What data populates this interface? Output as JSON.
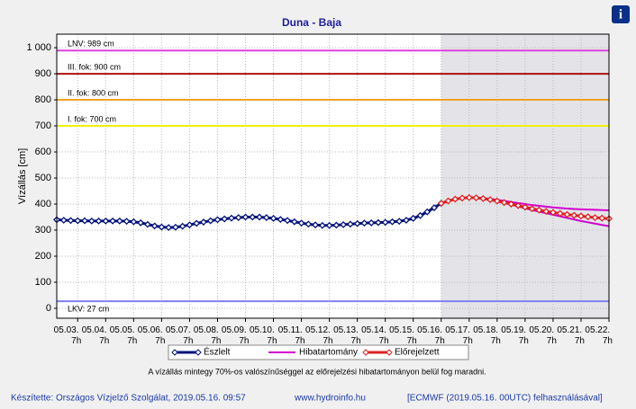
{
  "chart_data": {
    "type": "line",
    "title": "Duna - Baja",
    "ylabel": "Vízállás [cm]",
    "categories": [
      null,
      null,
      null,
      "05.03. 7h",
      null,
      null,
      null,
      "05.04. 7h",
      null,
      null,
      null,
      "05.05. 7h",
      null,
      null,
      null,
      "05.06. 7h",
      null,
      null,
      null,
      "05.07. 7h",
      null,
      null,
      null,
      "05.08. 7h",
      null,
      null,
      null,
      "05.09. 7h",
      null,
      null,
      null,
      "05.10. 7h",
      null,
      null,
      null,
      "05.11. 7h",
      null,
      null,
      null,
      "05.12. 7h",
      null,
      null,
      null,
      "05.13. 7h",
      null,
      null,
      null,
      "05.14. 7h",
      null,
      null,
      null,
      "05.15. 7h",
      null,
      null,
      null,
      "05.16. 7h",
      null,
      null,
      null,
      "05.17. 7h",
      null,
      null,
      null,
      "05.18. 7h",
      null,
      null,
      null,
      "05.19. 7h",
      null,
      null,
      null,
      "05.20. 7h",
      null,
      null,
      null,
      "05.21. 7h",
      null,
      null,
      null,
      "05.22. 7h"
    ],
    "series": [
      {
        "name": "Észlelt",
        "color": "#00107a",
        "values": [
          340,
          338,
          337,
          336,
          336,
          335,
          335,
          335,
          335,
          335,
          334,
          332,
          328,
          322,
          316,
          312,
          310,
          311,
          315,
          320,
          326,
          331,
          336,
          340,
          343,
          346,
          348,
          350,
          350,
          350,
          348,
          345,
          341,
          337,
          332,
          327,
          323,
          320,
          318,
          318,
          319,
          321,
          323,
          325,
          327,
          328,
          329,
          330,
          332,
          334,
          338,
          345,
          356,
          370,
          386,
          403,
          null,
          null,
          null,
          null,
          null,
          null,
          null,
          null,
          null,
          null,
          null,
          null,
          null,
          null,
          null,
          null,
          null,
          null,
          null,
          null,
          null,
          null,
          null,
          null
        ]
      },
      {
        "name": "Hibatartomány",
        "color": "#d000d0",
        "upper": [
          null,
          null,
          null,
          null,
          null,
          null,
          null,
          null,
          null,
          null,
          null,
          null,
          null,
          null,
          null,
          null,
          null,
          null,
          null,
          null,
          null,
          null,
          null,
          null,
          null,
          null,
          null,
          null,
          null,
          null,
          null,
          null,
          null,
          null,
          null,
          null,
          null,
          null,
          null,
          null,
          null,
          null,
          null,
          null,
          null,
          null,
          null,
          null,
          null,
          null,
          null,
          null,
          null,
          null,
          null,
          403,
          412,
          419,
          423,
          425,
          425,
          423,
          420,
          416,
          412,
          408,
          404,
          400,
          396,
          393,
          390,
          387,
          385,
          383,
          381,
          380,
          379,
          378,
          377,
          376
        ],
        "lower": [
          null,
          null,
          null,
          null,
          null,
          null,
          null,
          null,
          null,
          null,
          null,
          null,
          null,
          null,
          null,
          null,
          null,
          null,
          null,
          null,
          null,
          null,
          null,
          null,
          null,
          null,
          null,
          null,
          null,
          null,
          null,
          null,
          null,
          null,
          null,
          null,
          null,
          null,
          null,
          null,
          null,
          null,
          null,
          null,
          null,
          null,
          null,
          null,
          null,
          null,
          null,
          null,
          null,
          null,
          null,
          403,
          412,
          419,
          423,
          425,
          423,
          420,
          415,
          410,
          404,
          398,
          391,
          384,
          377,
          371,
          365,
          359,
          353,
          347,
          341,
          335,
          330,
          325,
          320,
          315
        ]
      },
      {
        "name": "Előrejelzett",
        "color": "#e02020",
        "values": [
          null,
          null,
          null,
          null,
          null,
          null,
          null,
          null,
          null,
          null,
          null,
          null,
          null,
          null,
          null,
          null,
          null,
          null,
          null,
          null,
          null,
          null,
          null,
          null,
          null,
          null,
          null,
          null,
          null,
          null,
          null,
          null,
          null,
          null,
          null,
          null,
          null,
          null,
          null,
          null,
          null,
          null,
          null,
          null,
          null,
          null,
          null,
          null,
          null,
          null,
          null,
          null,
          null,
          null,
          null,
          403,
          412,
          419,
          423,
          425,
          424,
          421,
          417,
          412,
          406,
          400,
          394,
          388,
          382,
          377,
          372,
          368,
          364,
          360,
          357,
          354,
          351,
          348,
          346,
          344
        ]
      }
    ],
    "reference_lines": [
      {
        "label": "LNV: 989 cm",
        "value": 989,
        "color": "#e040e0"
      },
      {
        "label": "III. fok: 900 cm",
        "value": 900,
        "color": "#b01010"
      },
      {
        "label": "II. fok: 800 cm",
        "value": 800,
        "color": "#f0a020"
      },
      {
        "label": "I. fok: 700 cm",
        "value": 700,
        "color": "#f0f000"
      },
      {
        "label": "LKV: 27 cm",
        "value": 27,
        "color": "#8080f0"
      }
    ],
    "ylim": [
      -38,
      1052
    ],
    "yticks": [
      0,
      100,
      200,
      300,
      400,
      500,
      600,
      700,
      800,
      900,
      {
        "value": 1000,
        "label": "1 000"
      }
    ],
    "grid": true,
    "note": "A vízállás mintegy 70%-os valószínűséggel az előrejelzési hibatartományon belül fog maradni.",
    "footer": {
      "author": "Készítette: Országos Vízjelző Szolgálat, 2019.05.16. 09:57",
      "url": "www.hydroinfo.hu",
      "source": "[ECMWF (2019.05.16. 00UTC) felhasználásával]"
    },
    "info_button": "i"
  }
}
